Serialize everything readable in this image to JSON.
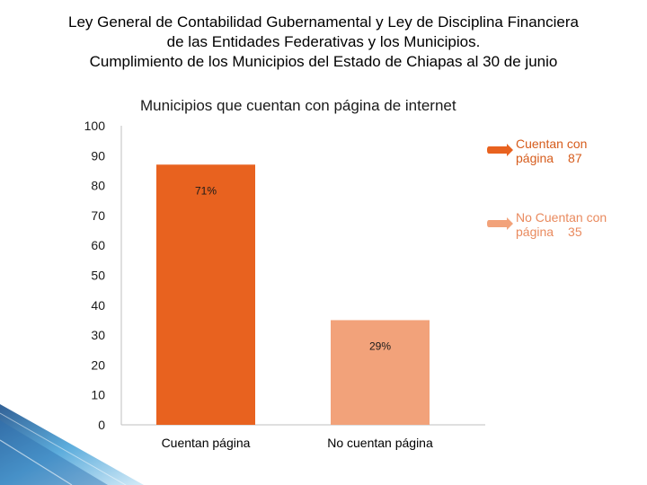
{
  "title_lines": [
    "Ley General de Contabilidad Gubernamental y Ley de Disciplina Financiera",
    "de las Entidades Federativas y los Municipios.",
    "Cumplimiento de los Municipios del Estado de Chiapas al 30 de junio"
  ],
  "chart_data": {
    "type": "bar",
    "title": "Municipios que cuentan con página de internet",
    "categories": [
      "Cuentan página",
      "No cuentan página"
    ],
    "values": [
      87,
      35
    ],
    "data_labels": [
      "71%",
      "29%"
    ],
    "colors": [
      "#e8621f",
      "#f2a27a"
    ],
    "ylim": [
      0,
      100
    ],
    "yticks": [
      0,
      10,
      20,
      30,
      40,
      50,
      60,
      70,
      80,
      90,
      100
    ],
    "xlabel": "",
    "ylabel": ""
  },
  "legend": [
    {
      "label": "Cuentan con página",
      "value": "87",
      "color": "#e8621f"
    },
    {
      "label": "No Cuentan con página",
      "value": "35",
      "color": "#f2a27a"
    }
  ]
}
